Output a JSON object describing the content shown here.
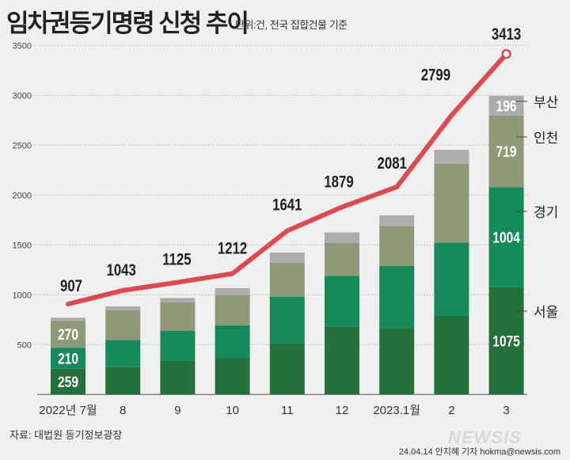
{
  "title": "임차권등기명령 신청 추이",
  "unit_note": "단위:건, 전국 집합건물 기준",
  "source": "자료: 대법원 등기정보광장",
  "credit": "24.04.14 안지혜 기자 hokma@newsis.com",
  "watermark": "NEWSIS",
  "chart_data": {
    "type": "bar",
    "stacked": true,
    "categories": [
      "2022년 7월",
      "8",
      "9",
      "10",
      "11",
      "12",
      "2023.1월",
      "2",
      "3"
    ],
    "ylim": [
      0,
      3500
    ],
    "yticks": [
      500,
      1000,
      1500,
      2000,
      2500,
      3000,
      3500
    ],
    "grid": true,
    "series": [
      {
        "name": "서울",
        "color": "#23703b",
        "values": [
          259,
          275,
          336,
          367,
          516,
          680,
          661,
          788,
          1075
        ],
        "labels": [
          259,
          null,
          null,
          null,
          null,
          null,
          null,
          null,
          1075
        ]
      },
      {
        "name": "경기",
        "color": "#168a5b",
        "values": [
          210,
          273,
          304,
          328,
          463,
          510,
          630,
          736,
          1004
        ],
        "labels": [
          210,
          null,
          null,
          null,
          null,
          null,
          null,
          null,
          1004
        ]
      },
      {
        "name": "인천",
        "color": "#8e9a77",
        "values": [
          270,
          298,
          283,
          302,
          343,
          331,
          397,
          790,
          719
        ],
        "labels": [
          270,
          null,
          null,
          null,
          null,
          null,
          null,
          null,
          719
        ]
      },
      {
        "name": "부산",
        "color": "#acacac",
        "values": [
          31,
          37,
          45,
          69,
          101,
          103,
          108,
          138,
          196
        ],
        "labels": [
          null,
          null,
          null,
          null,
          null,
          null,
          null,
          null,
          196
        ]
      }
    ],
    "line": {
      "color": "#dd4a50",
      "values": [
        907,
        1043,
        1125,
        1212,
        1641,
        1879,
        2081,
        2799,
        3413
      ]
    }
  }
}
